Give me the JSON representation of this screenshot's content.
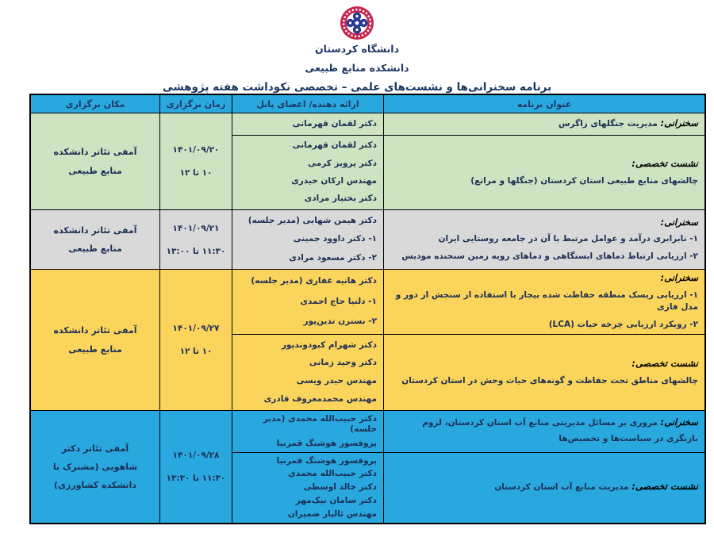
{
  "masthead": {
    "university": "دانشگاه کردستان",
    "faculty": "دانشکده منابع طبیعی",
    "title": "برنامه سخنرانی‌ها و نشست‌های علمی – تخصصی نکوداشت هفته پژوهشی"
  },
  "colors": {
    "header_bg": "#29a8df",
    "logo_ring": "#c5234c",
    "logo_inner": "#ffffff",
    "logo_emblem": "#2b3990",
    "section_green": "#cde3c1",
    "section_gray": "#d9d9d9",
    "section_yellow": "#fbd45c",
    "section_blue": "#29a8df"
  },
  "table": {
    "headers": {
      "program": "عنوان برنامه",
      "panel": "ارائه دهنده/ اعضای پانل",
      "time": "زمان برگزاری",
      "location": "مکان برگزاری"
    },
    "sections": [
      {
        "bg": "#cde3c1",
        "rows": [
          {
            "label": "سخنرانی:",
            "inline": true,
            "lines": [
              "مدیریت جنگلهای زاگرس"
            ],
            "panel": [
              "دکتر لقمان قهرمانی"
            ]
          },
          {
            "label": "نشست تخصصی:",
            "inline": false,
            "lines": [
              "چالشهای منابع طبیعی استان کردستان (جنگلها و مراتع)"
            ],
            "panel": [
              "دکتر لقمان قهرمانی",
              "دکتر پرویز کرمی",
              "مهندس ارکان حیدری",
              "دکتر بختیار مرادی"
            ]
          }
        ],
        "date": "۱۴۰۱/۰۹/۲۰",
        "hours": "۱۰ تا ۱۲",
        "location": "آمفی تئاتر دانشکده منابع طبیعی"
      },
      {
        "bg": "#d9d9d9",
        "rows": [
          {
            "label": "سخنرانی:",
            "inline": false,
            "lines": [
              "۱- نابرابری درآمد و عوامل مرتبط با آن در جامعه روستایی ایران",
              "۲- ارزیابی ارتباط دماهای ایستگاهی و دماهای رویه زمین  سنجنده مودیس"
            ],
            "panel": [
              "دکتر هیمن شهابی (مدیر جلسه)",
              "۱- دکتر داوود جمینی",
              "۲- دکتر مسعود مرادی"
            ]
          }
        ],
        "date": "۱۴۰۱/۰۹/۲۱",
        "hours": "۱۱:۳۰ تا ۱۳:۰۰",
        "location": "آمفی تئاتر دانشکده منابع طبیعی"
      },
      {
        "bg": "#fbd45c",
        "rows": [
          {
            "label": "سخنرانی:",
            "inline": false,
            "lines": [
              "۱- ارزیابی ریسک منطقه حفاظت شده بیجار با استفاده از سنجش از دور و مدل فازی",
              "۲- رویکرد ارزیابی چرخه حیات (LCA)"
            ],
            "panel": [
              "دکتر هانیه غفاری (مدیر جلسه)",
              "۱- دلنیا حاج احمدی",
              "۲- نسترن تدین‌پور"
            ]
          },
          {
            "label": "نشست تخصصی:",
            "inline": false,
            "lines": [
              "چالشهای مناطق تحت حفاظت و گونه‌های حیات وحش در استان کردستان"
            ],
            "panel": [
              "دکتر شهرام کبودوندپور",
              "دکتر وحید زمانی",
              "مهندس حیدر ویسی",
              "مهندس محمدمعروف قادری"
            ]
          }
        ],
        "date": "۱۴۰۱/۰۹/۲۷",
        "hours": "۱۰ تا ۱۲",
        "location": "آمفی تئاتر دانشکده منابع طبیعی"
      },
      {
        "bg": "#29a8df",
        "rows": [
          {
            "label": "سخنرانی:",
            "inline": true,
            "lines": [
              "مروری بر مسائل مدیریتی منابع آب استان کردستان، لزوم بازنگری در سیاست‌ها و تخصیص‌ها"
            ],
            "panel": [
              "دکتر حبیب‌الله محمدی (مدیر جلسه)",
              "پروفسور هوشنگ قمرنیا"
            ]
          },
          {
            "label": "نشست تخصصی:",
            "inline": true,
            "lines": [
              "مدیریت منابع آب استان کردستان"
            ],
            "panel": [
              "پروفسور هوشنگ قمرنیا",
              "دکتر حبیب‌الله محمدی",
              "دکتر خالد اوسطی",
              "دکتر سامان نیک‌مهر",
              "مهندس ئالیار ضمیران"
            ]
          }
        ],
        "date": "۱۴۰۱/۰۹/۲۸",
        "hours": "۱۱:۳۰ تا ۱۳:۳۰",
        "location": "آمفی تئاتر دکتر شاهویی (مشترک با دانشکده کشاورزی)"
      }
    ]
  }
}
